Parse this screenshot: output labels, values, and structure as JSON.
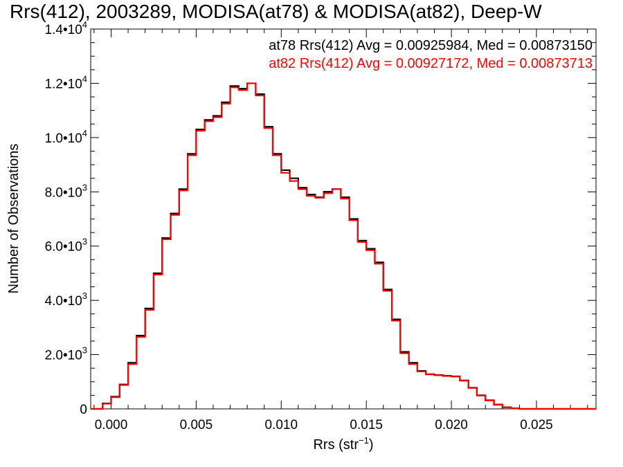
{
  "chart_data": {
    "type": "line",
    "style": "step-histogram",
    "title": "Rrs(412), 2003289, MODISA(at78) & MODISA(at82), Deep-W",
    "xlabel_main": "Rrs (str",
    "xlabel_sup": "−1",
    "xlabel_close": ")",
    "ylabel": "Number of Observations",
    "xlim": [
      -0.0012,
      0.0285
    ],
    "ylim": [
      0,
      14000
    ],
    "x_ticks": [
      0.0,
      0.005,
      0.01,
      0.015,
      0.02,
      0.025
    ],
    "x_tick_labels": [
      "0.000",
      "0.005",
      "0.010",
      "0.015",
      "0.020",
      "0.025"
    ],
    "y_ticks": [
      0,
      2000,
      4000,
      6000,
      8000,
      10000,
      12000,
      14000
    ],
    "y_tick_labels": [
      {
        "main": "0",
        "sup": ""
      },
      {
        "main": "2.0•10",
        "sup": "3"
      },
      {
        "main": "4.0•10",
        "sup": "3"
      },
      {
        "main": "6.0•10",
        "sup": "3"
      },
      {
        "main": "8.0•10",
        "sup": "3"
      },
      {
        "main": "1.0•10",
        "sup": "4"
      },
      {
        "main": "1.2•10",
        "sup": "4"
      },
      {
        "main": "1.4•10",
        "sup": "4"
      }
    ],
    "grid": false,
    "legend_placement": "top-right",
    "annotations": [
      {
        "text": "at78 Rrs(412) Avg = 0.00925984, Med = 0.00873150",
        "color": "#000000"
      },
      {
        "text": "at82 Rrs(412) Avg = 0.00927172, Med = 0.00873713",
        "color": "#ff0000"
      }
    ],
    "series": [
      {
        "color": "#000000",
        "x": [
          -0.0012,
          -0.0005,
          0.0,
          0.0005,
          0.001,
          0.0015,
          0.002,
          0.0025,
          0.003,
          0.0035,
          0.004,
          0.0045,
          0.005,
          0.0055,
          0.006,
          0.0065,
          0.007,
          0.0075,
          0.008,
          0.0085,
          0.009,
          0.0095,
          0.01,
          0.0105,
          0.011,
          0.0115,
          0.012,
          0.0125,
          0.013,
          0.0135,
          0.014,
          0.0145,
          0.015,
          0.0155,
          0.016,
          0.0165,
          0.017,
          0.0175,
          0.018,
          0.0185,
          0.019,
          0.0195,
          0.02,
          0.0205,
          0.021,
          0.0215,
          0.022,
          0.0225,
          0.023,
          0.0235,
          0.024,
          0.025,
          0.0285
        ],
        "y": [
          0,
          200,
          450,
          900,
          1700,
          2700,
          3700,
          5000,
          6300,
          7200,
          8100,
          9400,
          10300,
          10650,
          10800,
          11300,
          11900,
          11800,
          12000,
          11600,
          10400,
          9400,
          8800,
          8500,
          8150,
          7900,
          7800,
          8000,
          8100,
          7800,
          7000,
          6200,
          5900,
          5400,
          4400,
          3300,
          2100,
          1700,
          1400,
          1280,
          1250,
          1220,
          1200,
          1050,
          780,
          500,
          320,
          160,
          60,
          20,
          0,
          0,
          0
        ]
      },
      {
        "color": "#ff0000",
        "x": [
          -0.0012,
          -0.0005,
          0.0,
          0.0005,
          0.001,
          0.0015,
          0.002,
          0.0025,
          0.003,
          0.0035,
          0.004,
          0.0045,
          0.005,
          0.0055,
          0.006,
          0.0065,
          0.007,
          0.0075,
          0.008,
          0.0085,
          0.009,
          0.0095,
          0.01,
          0.0105,
          0.011,
          0.0115,
          0.012,
          0.0125,
          0.013,
          0.0135,
          0.014,
          0.0145,
          0.015,
          0.0155,
          0.016,
          0.0165,
          0.017,
          0.0175,
          0.018,
          0.0185,
          0.019,
          0.0195,
          0.02,
          0.0205,
          0.021,
          0.0215,
          0.022,
          0.0225,
          0.023,
          0.0235,
          0.024,
          0.025,
          0.0285
        ],
        "y": [
          0,
          190,
          430,
          880,
          1650,
          2650,
          3650,
          4950,
          6250,
          7150,
          8050,
          9350,
          10250,
          10600,
          10750,
          11250,
          11850,
          11750,
          12000,
          11550,
          10350,
          9350,
          8700,
          8400,
          8100,
          7850,
          7780,
          7950,
          8100,
          7750,
          6950,
          6150,
          5850,
          5350,
          4350,
          3250,
          2050,
          1650,
          1380,
          1270,
          1240,
          1210,
          1190,
          1040,
          770,
          490,
          310,
          150,
          55,
          18,
          0,
          0,
          0
        ]
      }
    ]
  }
}
